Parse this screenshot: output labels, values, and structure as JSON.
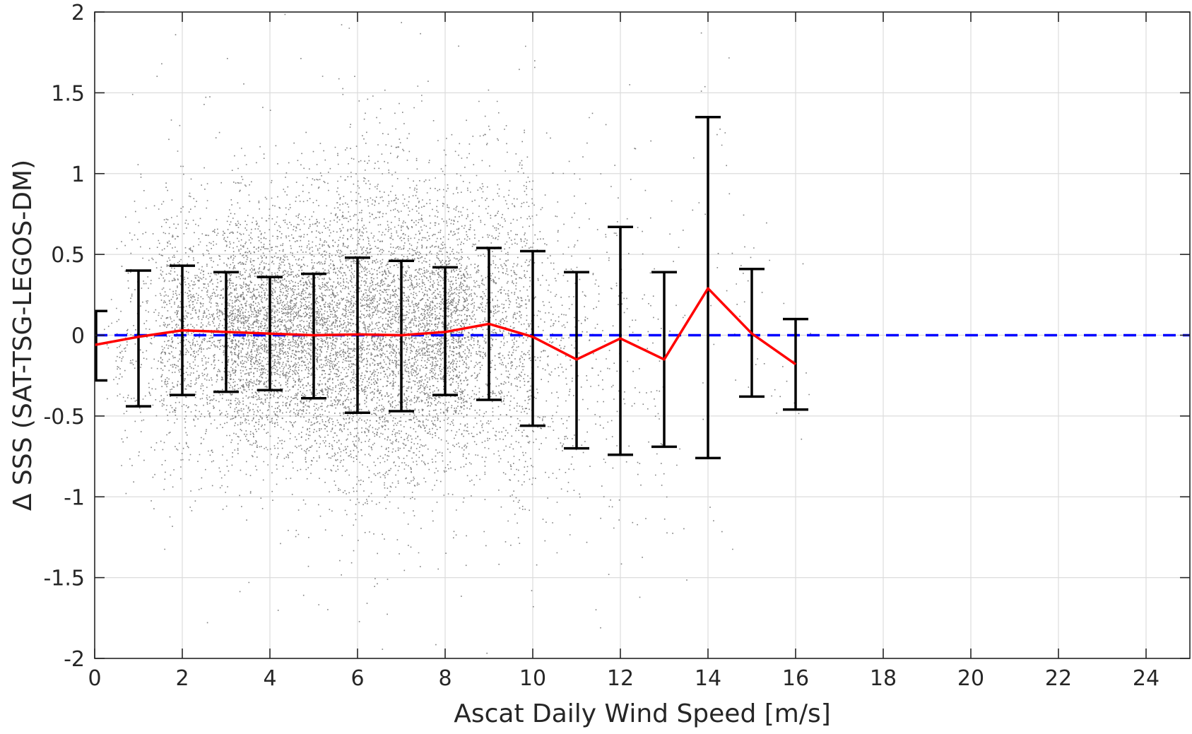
{
  "chart_data": {
    "type": "scatter",
    "title": "",
    "xlabel": "Ascat Daily Wind Speed [m/s]",
    "ylabel": "Δ SSS (SAT-TSG-LEGOS-DM)",
    "xlim": [
      0,
      25
    ],
    "ylim": [
      -2,
      2
    ],
    "xticks": [
      0,
      2,
      4,
      6,
      8,
      10,
      12,
      14,
      16,
      18,
      20,
      22,
      24
    ],
    "yticks": [
      -2,
      -1.5,
      -1,
      -0.5,
      0,
      0.5,
      1,
      1.5,
      2
    ],
    "grid": true,
    "legend": "none",
    "colors": {
      "scatter": "#808080",
      "mean_line": "#ff0000",
      "zero_line": "#0000ff",
      "error_bars": "#000000",
      "axes": "#262626",
      "grid": "#dcdcdc"
    },
    "scatter_summary": {
      "x_range": [
        0,
        16.5
      ],
      "y_range": [
        -2,
        2
      ],
      "point_count_estimate": 12000
    },
    "mean_line": {
      "x": [
        0,
        1,
        2,
        3,
        4,
        5,
        6,
        7,
        8,
        9,
        10,
        11,
        12,
        13,
        14,
        15,
        16
      ],
      "y": [
        -0.06,
        -0.01,
        0.03,
        0.02,
        0.01,
        0.0,
        0.005,
        0.0,
        0.02,
        0.07,
        -0.01,
        -0.15,
        -0.02,
        -0.15,
        0.29,
        0.01,
        -0.18
      ]
    },
    "zero_line": {
      "y": 0
    },
    "error_bars": [
      {
        "x": 0,
        "low": -0.28,
        "high": 0.15
      },
      {
        "x": 1,
        "low": -0.44,
        "high": 0.4
      },
      {
        "x": 2,
        "low": -0.37,
        "high": 0.43
      },
      {
        "x": 3,
        "low": -0.35,
        "high": 0.39
      },
      {
        "x": 4,
        "low": -0.34,
        "high": 0.36
      },
      {
        "x": 5,
        "low": -0.39,
        "high": 0.38
      },
      {
        "x": 6,
        "low": -0.48,
        "high": 0.48
      },
      {
        "x": 7,
        "low": -0.47,
        "high": 0.46
      },
      {
        "x": 8,
        "low": -0.37,
        "high": 0.42
      },
      {
        "x": 9,
        "low": -0.4,
        "high": 0.54
      },
      {
        "x": 10,
        "low": -0.56,
        "high": 0.52
      },
      {
        "x": 11,
        "low": -0.7,
        "high": 0.39
      },
      {
        "x": 12,
        "low": -0.74,
        "high": 0.67
      },
      {
        "x": 13,
        "low": -0.69,
        "high": 0.39
      },
      {
        "x": 14,
        "low": -0.76,
        "high": 1.35
      },
      {
        "x": 15,
        "low": -0.38,
        "high": 0.41
      },
      {
        "x": 16,
        "low": -0.46,
        "high": 0.1
      }
    ]
  }
}
